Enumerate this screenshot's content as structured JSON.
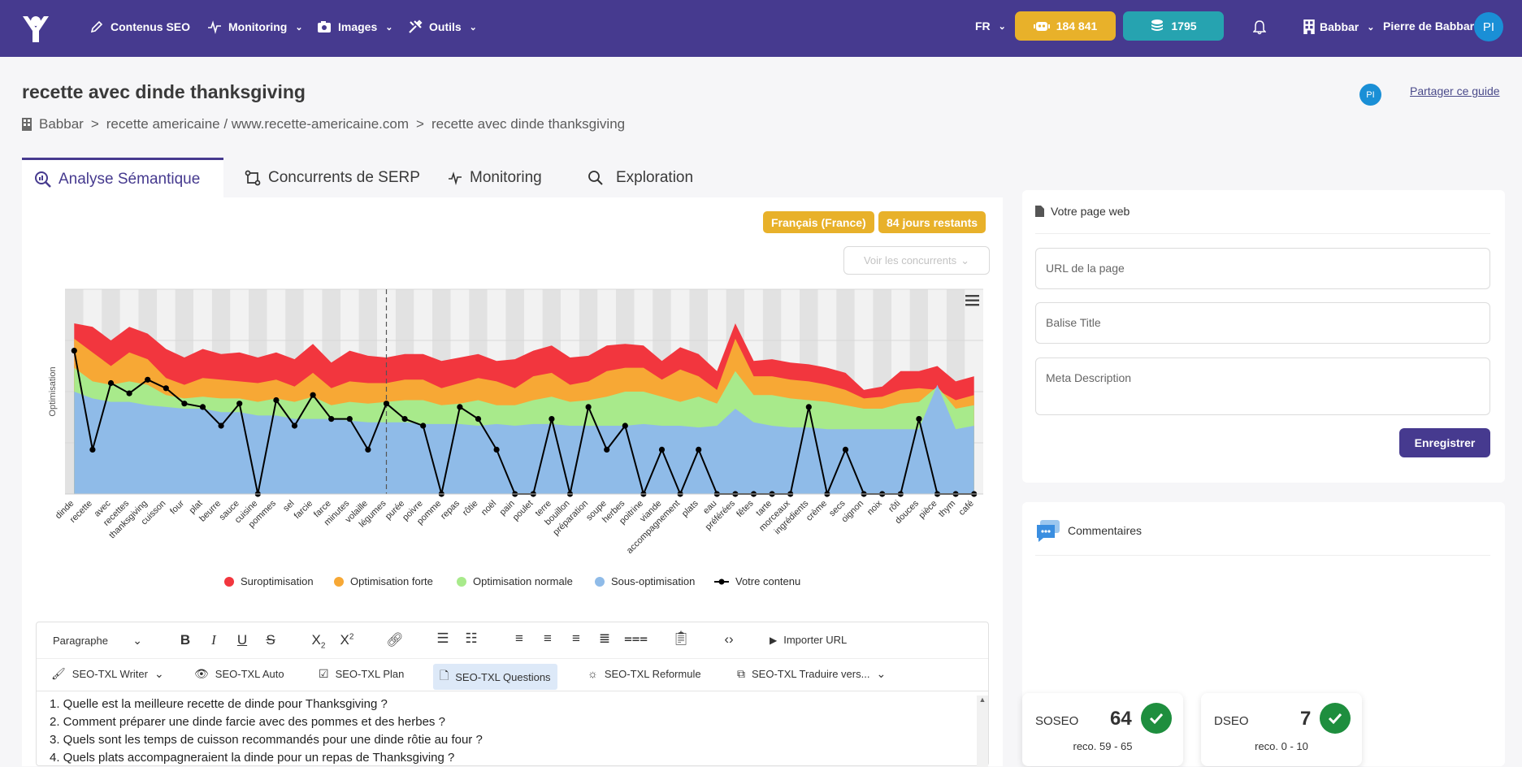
{
  "topnav": {
    "items": [
      {
        "label": "Contenus SEO",
        "icon": "pen-icon"
      },
      {
        "label": "Monitoring",
        "icon": "pulse-icon"
      },
      {
        "label": "Images",
        "icon": "camera-icon"
      },
      {
        "label": "Outils",
        "icon": "tools-icon"
      }
    ],
    "language": "FR",
    "credits_robot": "184 841",
    "credits_coins": "1795",
    "org": "Babbar",
    "user": "Pierre de Babbar",
    "avatar_initials": "PI",
    "colors": {
      "bar": "#463a8f",
      "gold": "#e8b12a",
      "teal": "#26a3b0"
    }
  },
  "page": {
    "title": "recette avec dinde thanksgiving",
    "breadcrumb": [
      "Babbar",
      "recette americaine / www.recette-americaine.com",
      "recette avec dinde thanksgiving"
    ],
    "breadcrumb_sep": ">",
    "share_label": "Partager ce guide",
    "share_avatar": "PI"
  },
  "tabs": [
    {
      "label": "Analyse Sémantique",
      "active": true
    },
    {
      "label": "Concurrents de SERP",
      "active": false
    },
    {
      "label": "Monitoring",
      "active": false
    },
    {
      "label": "Exploration",
      "active": false
    }
  ],
  "badges": {
    "language": "Français (France)",
    "days": "84 jours restants"
  },
  "voir_concurrents": "Voir les concurrents",
  "chart_data": {
    "type": "area",
    "ylabel": "Optimisation",
    "categories": [
      "dinde",
      "recette",
      "avec",
      "recettes",
      "thanksgiving",
      "cuisson",
      "four",
      "plat",
      "beurre",
      "sauce",
      "cuisine",
      "pommes",
      "sel",
      "farcie",
      "farce",
      "minutes",
      "volaille",
      "légumes",
      "purée",
      "poivre",
      "pomme",
      "repas",
      "rôtie",
      "noël",
      "pain",
      "poulet",
      "terre",
      "bouillon",
      "préparation",
      "soupe",
      "herbes",
      "poitrine",
      "viande",
      "accompagnement",
      "plats",
      "eau",
      "préférées",
      "fêtes",
      "tarte",
      "morceaux",
      "ingrédients",
      "crème",
      "secs",
      "oignon",
      "noix",
      "rôti",
      "douces",
      "pièce",
      "thym",
      "café"
    ],
    "series": [
      {
        "name": "Sous-optimisation",
        "color": "#8fbbe8",
        "values": [
          60,
          56,
          54,
          54,
          52,
          51,
          50,
          50,
          48,
          48,
          46,
          46,
          44,
          44,
          44,
          43,
          42,
          42,
          42,
          41,
          41,
          41,
          40,
          41,
          40,
          41,
          41,
          40,
          40,
          40,
          40,
          41,
          40,
          40,
          39,
          40,
          50,
          42,
          40,
          39,
          39,
          38,
          38,
          38,
          38,
          38,
          38,
          64,
          38,
          40
        ]
      },
      {
        "name": "Optimisation normale",
        "color": "#a8ea8b",
        "values": [
          74,
          66,
          64,
          66,
          64,
          58,
          56,
          57,
          56,
          56,
          54,
          56,
          54,
          57,
          52,
          54,
          53,
          54,
          55,
          55,
          52,
          53,
          55,
          52,
          52,
          55,
          57,
          54,
          55,
          57,
          60,
          60,
          57,
          54,
          57,
          53,
          72,
          58,
          58,
          56,
          55,
          54,
          52,
          50,
          50,
          53,
          54,
          63,
          50,
          52
        ]
      },
      {
        "name": "Optimisation forte",
        "color": "#f7a835",
        "values": [
          91,
          83,
          75,
          83,
          79,
          68,
          64,
          68,
          67,
          66,
          65,
          67,
          63,
          71,
          62,
          66,
          65,
          65,
          67,
          67,
          62,
          65,
          68,
          66,
          62,
          69,
          71,
          64,
          66,
          72,
          74,
          74,
          67,
          73,
          69,
          61,
          91,
          69,
          69,
          67,
          66,
          64,
          61,
          56,
          57,
          61,
          62,
          61,
          55,
          58
        ]
      },
      {
        "name": "Suroptimisation",
        "color": "#f2363e",
        "values": [
          100,
          98,
          90,
          98,
          94,
          85,
          80,
          85,
          82,
          83,
          80,
          83,
          79,
          88,
          77,
          84,
          81,
          80,
          82,
          82,
          78,
          80,
          82,
          78,
          79,
          84,
          87,
          80,
          81,
          87,
          88,
          87,
          78,
          86,
          82,
          72,
          100,
          78,
          79,
          77,
          76,
          74,
          71,
          61,
          63,
          72,
          72,
          75,
          66,
          69
        ]
      },
      {
        "name": "Votre contenu",
        "color": "#000000",
        "values": [
          84,
          26,
          65,
          59,
          67,
          62,
          53,
          51,
          40,
          53,
          0,
          55,
          40,
          58,
          44,
          44,
          26,
          53,
          44,
          40,
          0,
          51,
          44,
          26,
          0,
          0,
          44,
          0,
          51,
          26,
          40,
          0,
          26,
          0,
          26,
          0,
          0,
          0,
          0,
          0,
          51,
          0,
          26,
          0,
          0,
          0,
          44,
          0,
          0,
          0
        ]
      }
    ],
    "ylim": [
      0,
      120
    ],
    "legend": "bottom",
    "current_index": 17
  },
  "editor": {
    "paragraph_select": "Paragraphe",
    "import_url": "Importer URL",
    "tools": [
      "SEO-TXL Writer",
      "SEO-TXL Auto",
      "SEO-TXL Plan",
      "SEO-TXL Questions",
      "SEO-TXL Reformule",
      "SEO-TXL Traduire vers..."
    ],
    "active_tool": "SEO-TXL Questions",
    "lines": [
      "1. Quelle est la meilleure recette de dinde pour Thanksgiving ?",
      "2. Comment préparer une dinde farcie avec des pommes et des herbes ?",
      "3. Quels sont les temps de cuisson recommandés pour une dinde rôtie au four ?",
      "4. Quels plats accompagneraient la dinde pour un repas de Thanksgiving ?"
    ]
  },
  "webpage": {
    "title": "Votre page web",
    "url_placeholder": "URL de la page",
    "title_placeholder": "Balise Title",
    "meta_placeholder": "Meta Description",
    "save_label": "Enregistrer"
  },
  "comments": {
    "title": "Commentaires"
  },
  "scores": {
    "soseo": {
      "label": "SOSEO",
      "value": "64",
      "reco": "reco. 59 - 65"
    },
    "dseo": {
      "label": "DSEO",
      "value": "7",
      "reco": "reco. 0 - 10"
    }
  }
}
